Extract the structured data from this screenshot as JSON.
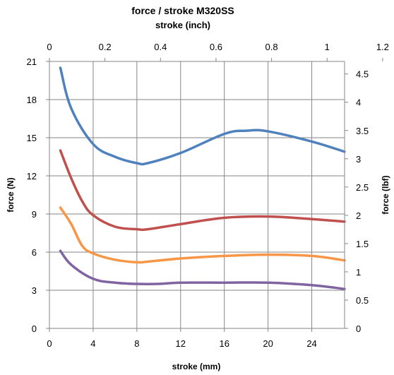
{
  "chart_data": {
    "type": "line",
    "title": "force / stroke M320SS",
    "x_top_label": "stroke (inch)",
    "xlabel": "stroke (mm)",
    "ylabel": "force (N)",
    "y_right_label": "force (lbf)",
    "xlim": [
      0,
      27
    ],
    "ylim": [
      0,
      21
    ],
    "x_top_lim": [
      0,
      1.063
    ],
    "y_right_lim": [
      0,
      4.7209
    ],
    "x_ticks": [
      0,
      4,
      8,
      12,
      16,
      20,
      24
    ],
    "x_tick_labels": [
      "0",
      "4",
      "8",
      "12",
      "16",
      "20",
      "24"
    ],
    "y_ticks": [
      0,
      3,
      6,
      9,
      12,
      15,
      18,
      21
    ],
    "y_tick_labels": [
      "0",
      "3",
      "6",
      "9",
      "12",
      "15",
      "18",
      "21"
    ],
    "x_top_ticks": [
      0,
      0.2,
      0.4,
      0.6,
      0.8,
      1,
      1.2
    ],
    "x_top_tick_labels": [
      "0",
      "0.2",
      "0.4",
      "0.6",
      "0.8",
      "1",
      "1.2"
    ],
    "y_right_ticks": [
      0,
      0.5,
      1,
      1.5,
      2,
      2.5,
      3,
      3.5,
      4,
      4.5
    ],
    "y_right_tick_labels": [
      "0",
      "0.5",
      "1",
      "1.5",
      "2",
      "2.5",
      "3",
      "3.5",
      "4",
      "4.5"
    ],
    "grid": true,
    "legend": "none",
    "series": [
      {
        "color": "#4F81BD",
        "x": [
          1,
          2,
          4,
          6,
          8,
          9,
          12,
          16,
          18,
          20,
          24,
          27
        ],
        "y": [
          20.5,
          17.3,
          14.5,
          13.5,
          13.0,
          13.0,
          13.8,
          15.3,
          15.55,
          15.5,
          14.7,
          13.9
        ]
      },
      {
        "color": "#C0504D",
        "x": [
          1,
          2,
          3,
          4,
          6,
          8,
          9,
          12,
          16,
          20,
          24,
          27
        ],
        "y": [
          14.0,
          11.8,
          10.0,
          8.9,
          8.0,
          7.8,
          7.8,
          8.2,
          8.7,
          8.8,
          8.6,
          8.4
        ]
      },
      {
        "color": "#F79646",
        "x": [
          1,
          2,
          3,
          4,
          6,
          8,
          9,
          12,
          16,
          20,
          24,
          27
        ],
        "y": [
          9.5,
          8.2,
          6.5,
          5.9,
          5.4,
          5.2,
          5.25,
          5.5,
          5.7,
          5.8,
          5.7,
          5.35
        ]
      },
      {
        "color": "#8064A2",
        "x": [
          1,
          2,
          4,
          6,
          8,
          10,
          12,
          16,
          20,
          24,
          27
        ],
        "y": [
          6.1,
          5.0,
          3.9,
          3.6,
          3.5,
          3.5,
          3.6,
          3.6,
          3.6,
          3.4,
          3.1
        ]
      }
    ]
  }
}
